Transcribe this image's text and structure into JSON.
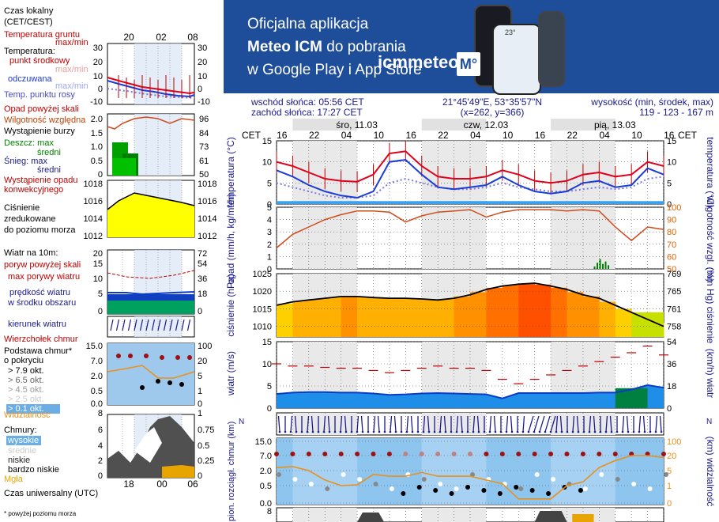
{
  "banner": {
    "line1": "Oficjalna aplikacja",
    "line2_bold": "Meteo ICM",
    "line2_rest": " do pobrania",
    "line3": "w Google Play i App Store",
    "logo_text": "icmmeteo",
    "logo_badge": "M°",
    "phone_temp": "23°"
  },
  "legend": {
    "local_time": "Czas lokalny",
    "local_time_zone": "(CET/CEST)",
    "ground_temp": "Temperatura gruntu",
    "maxmin": "max/min",
    "temperature": "Temperatura:",
    "mid_point": "punkt środkowy",
    "maxmin_faded": "max/min",
    "feels_like": "odczuwana",
    "maxmin_faded2": "max/min",
    "dew_point": "Temp. punktu rosy",
    "precip_above": "Opad powyżej skali",
    "humidity": "Wilgotność względna",
    "storm": "Wystąpienie burzy",
    "rain_max": "Deszcz: max",
    "rain_mid": "średni",
    "snow_max": "Śnieg:    max",
    "snow_mid": "średni",
    "precip_occ1": "Wystąpienie opadu",
    "precip_occ2": "konwekcyjnego",
    "pressure1": "Ciśnienie",
    "pressure2": "zredukowane",
    "pressure3": "do poziomu morza",
    "wind10": "Wiatr na 10m:",
    "gusts_above": "poryw powyżej skali",
    "max_gust": "max porywy wiatru",
    "wind_speed1": "prędkość wiatru",
    "wind_speed2": "w środku obszaru",
    "wind_dir": "kierunek wiatru",
    "cloud_top": "Wierzchołek chmur",
    "cloud_base1": "Podstawa chmur*",
    "cloud_base2": "o pokryciu",
    "okt1": "> 7.9 okt.",
    "okt2": "> 6.5 okt.",
    "okt3": "> 4.5 okt.",
    "okt4": "> 2.5 okt.",
    "okt5": "> 0.1 okt.",
    "visibility": "Widzialność",
    "clouds": "Chmury:",
    "high": "wysokie",
    "mid": "średnie",
    "low": "niskie",
    "very_low": "bardzo niskie",
    "fog": "Mgła",
    "utc": "Czas uniwersalny (UTC)",
    "footnote": "* powyżej poziomu morza"
  },
  "legend_ticks": {
    "top_hours": [
      "20",
      "02",
      "08"
    ],
    "bottom_hours": [
      "18",
      "00",
      "06"
    ],
    "temp_left": [
      "30",
      "20",
      "10",
      "0",
      "-10"
    ],
    "temp_right": [
      "30",
      "20",
      "10",
      "0",
      "-10"
    ],
    "precip_left": [
      "2.0",
      "1.5",
      "1.0",
      "0.5",
      "0"
    ],
    "precip_right": [
      "96",
      "84",
      "73",
      "61",
      "50"
    ],
    "pres_left": [
      "1018",
      "1016",
      "1014",
      "1012"
    ],
    "pres_right": [
      "1018",
      "1016",
      "1014",
      "1012"
    ],
    "wind_left": [
      "20",
      "15",
      "10",
      "5",
      "0"
    ],
    "wind_right": [
      "72",
      "54",
      "36",
      "18",
      "0"
    ],
    "cloud_left": [
      "15.0",
      "7.0",
      "2.0",
      "0.5",
      "0.0"
    ],
    "cloud_right": [
      "100",
      "20",
      "5",
      "1",
      "0"
    ],
    "cover_left": [
      "8",
      "6",
      "4",
      "2",
      "0"
    ],
    "cover_right": [
      "1",
      "0.75",
      "0.5",
      "0.25",
      "0"
    ]
  },
  "header": {
    "sunrise": "wschód słońca: 05:56 CET",
    "sunset": "zachód słońca: 17:27 CET",
    "coords": "21°45'49\"E, 53°35'57\"N",
    "grid": "(x=262, y=366)",
    "elev_label": "wysokość (min, środek, max)",
    "elev_values": "119 - 123 - 167 m"
  },
  "timeline": {
    "tz_label": "CET",
    "hours": [
      "16",
      "22",
      "04",
      "10",
      "16",
      "22",
      "04",
      "10",
      "16",
      "22",
      "04",
      "10",
      "16"
    ],
    "days": [
      "śro, 11.03",
      "czw, 12.03",
      "pią, 13.03"
    ]
  },
  "chart_data": [
    {
      "type": "line",
      "panel": "temperature",
      "ylabel": "temperatura (°C)",
      "ylim": [
        0,
        15
      ],
      "yticks": [
        "15",
        "10",
        "5",
        "0"
      ],
      "x_hours_from_start": [
        0,
        3,
        6,
        9,
        12,
        15,
        18,
        21,
        24,
        27,
        30,
        33,
        36,
        39,
        42,
        45,
        48,
        51,
        54,
        57,
        60,
        63,
        66,
        69,
        72
      ],
      "series": [
        {
          "name": "punkt środkowy",
          "color": "#e0001b",
          "values": [
            10,
            9,
            7.5,
            6,
            5.5,
            5.3,
            7,
            12,
            12.5,
            9,
            6.5,
            6,
            6,
            6.5,
            8,
            7,
            5.5,
            5,
            5.5,
            7,
            7.5,
            6.5,
            7,
            10,
            9
          ]
        },
        {
          "name": "odczuwana",
          "color": "#1a3cd8",
          "values": [
            8,
            6.5,
            4.5,
            3,
            2,
            1.5,
            3,
            10,
            10.5,
            7,
            4,
            3.5,
            4,
            4.5,
            6.5,
            4.5,
            3,
            2.5,
            3,
            5,
            5.5,
            4,
            4.5,
            8.5,
            7
          ]
        },
        {
          "name": "Temp. punktu rosy",
          "color": "#7a7adf",
          "values": [
            5,
            4,
            3,
            2,
            1.5,
            1.5,
            2,
            5,
            6,
            5,
            4,
            3.5,
            3.5,
            4,
            5,
            4,
            3.5,
            3,
            3,
            3.5,
            4,
            3.5,
            4,
            6,
            6.5
          ]
        }
      ]
    },
    {
      "type": "line",
      "panel": "precipitation_humidity",
      "ylabel": "opad (mm/h, kg/m²/h)",
      "y2label": "wilgotność wzgl. (%)",
      "ylim": [
        0,
        5
      ],
      "y2lim": [
        50,
        100
      ],
      "yticks": [
        "5",
        "4",
        "3",
        "2",
        "1",
        "0"
      ],
      "y2ticks": [
        "100",
        "90",
        "80",
        "70",
        "60",
        "50"
      ],
      "x_hours_from_start": [
        0,
        3,
        6,
        9,
        12,
        15,
        18,
        21,
        24,
        27,
        30,
        33,
        36,
        39,
        42,
        45,
        48,
        51,
        54,
        57,
        60,
        63,
        66,
        69,
        72
      ],
      "series": [
        {
          "name": "Wilgotność względna",
          "color": "#d04a1a",
          "values": [
            67,
            78,
            84,
            90,
            94,
            97,
            97,
            96,
            88,
            93,
            96,
            97,
            98,
            92,
            96,
            98,
            98,
            98,
            97,
            98,
            97,
            84,
            73,
            84,
            82
          ]
        }
      ],
      "precip_bars": [
        {
          "x": 59,
          "values": [
            0.2,
            0.5,
            0.8,
            0.4,
            0.6,
            0.3
          ]
        }
      ]
    },
    {
      "type": "line",
      "panel": "pressure",
      "ylabel": "ciśnienie (hPa)",
      "y2label": "(mm Hg) ciśnienie",
      "ylim": [
        1007,
        1025
      ],
      "yticks": [
        "1025",
        "1020",
        "1015",
        "1010"
      ],
      "y2ticks": [
        "769",
        "765",
        "761",
        "758"
      ],
      "x_hours_from_start": [
        0,
        3,
        6,
        9,
        12,
        15,
        18,
        21,
        24,
        27,
        30,
        33,
        36,
        39,
        42,
        45,
        48,
        51,
        54,
        57,
        60,
        63,
        66,
        69,
        72
      ],
      "series": [
        {
          "name": "Ciśnienie",
          "color": "#000000",
          "values": [
            1016,
            1017,
            1017.5,
            1018,
            1018.5,
            1018.5,
            1018.2,
            1018,
            1018,
            1017.8,
            1017.5,
            1018,
            1019,
            1020.5,
            1021.5,
            1022,
            1022.3,
            1021.5,
            1020.5,
            1019,
            1018,
            1016,
            1014,
            1012,
            1010
          ]
        }
      ]
    },
    {
      "type": "line",
      "panel": "wind",
      "ylabel": "wiatr (m/s)",
      "y2label": "(km/h) wiatr",
      "ylim": [
        0,
        15
      ],
      "yticks": [
        "15",
        "10",
        "5",
        "0"
      ],
      "y2ticks": [
        "54",
        "36",
        "18",
        "0"
      ],
      "x_hours_from_start": [
        0,
        3,
        6,
        9,
        12,
        15,
        18,
        21,
        24,
        27,
        30,
        33,
        36,
        39,
        42,
        45,
        48,
        51,
        54,
        57,
        60,
        63,
        66,
        69,
        72
      ],
      "series": [
        {
          "name": "prędkość wiatru",
          "color": "#0a3cc8",
          "values": [
            3.2,
            3.5,
            3.6,
            3.6,
            3.5,
            3.5,
            3.3,
            3,
            3.1,
            3.3,
            3.4,
            3.3,
            3.2,
            3.1,
            2.2,
            3.4,
            3.4,
            3.4,
            3.4,
            3.4,
            3.5,
            3.5,
            4.2,
            5.2,
            4.6
          ]
        },
        {
          "name": "max porywy wiatru",
          "color": "#c00000",
          "values": [
            10,
            9.5,
            9.5,
            9.2,
            9,
            9,
            8.5,
            8,
            8.5,
            9,
            9.5,
            9,
            9,
            8.5,
            6.5,
            5.5,
            6.5,
            7.5,
            8.5,
            9.5,
            10.5,
            11.5,
            12.5,
            14,
            12
          ]
        }
      ]
    },
    {
      "type": "line",
      "panel": "cloud_visibility",
      "ylabel": "pion. rozciągł. chmur (km)",
      "y2label": "(km) widzialność",
      "yticks": [
        "15.0",
        "7.0",
        "2.0",
        "0.5",
        "0.0"
      ],
      "y2ticks": [
        "100",
        "20",
        "5",
        "1",
        "0"
      ],
      "x_hours_from_start": [
        0,
        3,
        6,
        9,
        12,
        15,
        18,
        21,
        24,
        27,
        30,
        33,
        36,
        39,
        42,
        45,
        48,
        51,
        54,
        57,
        60,
        63,
        66,
        69,
        72
      ],
      "series": [
        {
          "name": "Widzialność",
          "color": "#e8901c",
          "values": [
            8,
            9,
            5,
            2.5,
            1,
            1.2,
            4,
            3.5,
            3.5,
            4.5,
            3.5,
            3.5,
            3.5,
            2.5,
            1.5,
            0.3,
            0.3,
            0.3,
            1,
            2,
            8,
            15,
            20,
            20,
            18
          ]
        }
      ]
    }
  ],
  "bottom_panel_tick": "8",
  "colors": {
    "banner": "#1e4d9a",
    "night": "#e1e1e1",
    "axis_label": "#1a1a8c"
  }
}
